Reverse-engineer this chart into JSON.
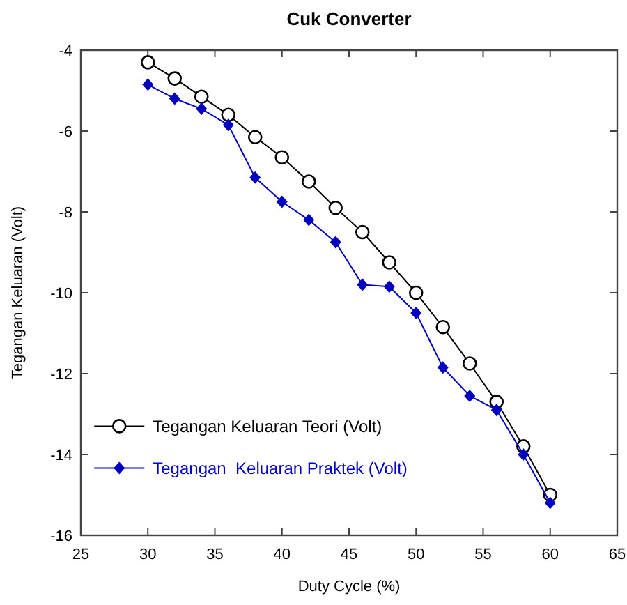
{
  "chart_data": {
    "type": "line",
    "title": "Cuk Converter",
    "xlabel": "Duty Cycle (%)",
    "ylabel": "Tegangan Keluaran (Volt)",
    "x": [
      30,
      32,
      34,
      36,
      38,
      40,
      42,
      44,
      46,
      48,
      50,
      52,
      54,
      56,
      58,
      60
    ],
    "series": [
      {
        "name": "Tegangan Keluaran Teori (Volt)",
        "color": "#000000",
        "marker": "circle",
        "values": [
          -4.3,
          -4.7,
          -5.15,
          -5.6,
          -6.15,
          -6.65,
          -7.25,
          -7.9,
          -8.5,
          -9.25,
          -10.0,
          -10.85,
          -11.75,
          -12.7,
          -13.8,
          -15.0
        ]
      },
      {
        "name": "Tegangan  Keluaran Praktek (Volt)",
        "color": "#0000c0",
        "marker": "diamond",
        "values": [
          -4.85,
          -5.2,
          -5.45,
          -5.85,
          -7.15,
          -7.75,
          -8.2,
          -8.75,
          -9.8,
          -9.85,
          -10.5,
          -11.85,
          -12.55,
          -12.9,
          -14.0,
          -15.2
        ]
      }
    ],
    "xlim": [
      25,
      65
    ],
    "xticks": [
      25,
      30,
      35,
      40,
      45,
      50,
      55,
      60,
      65
    ],
    "ylim": [
      -16,
      -4
    ],
    "yticks": [
      -16,
      -14,
      -12,
      -10,
      -8,
      -6,
      -4
    ],
    "grid": false,
    "legend": "bottom left",
    "line_style": "solid"
  }
}
